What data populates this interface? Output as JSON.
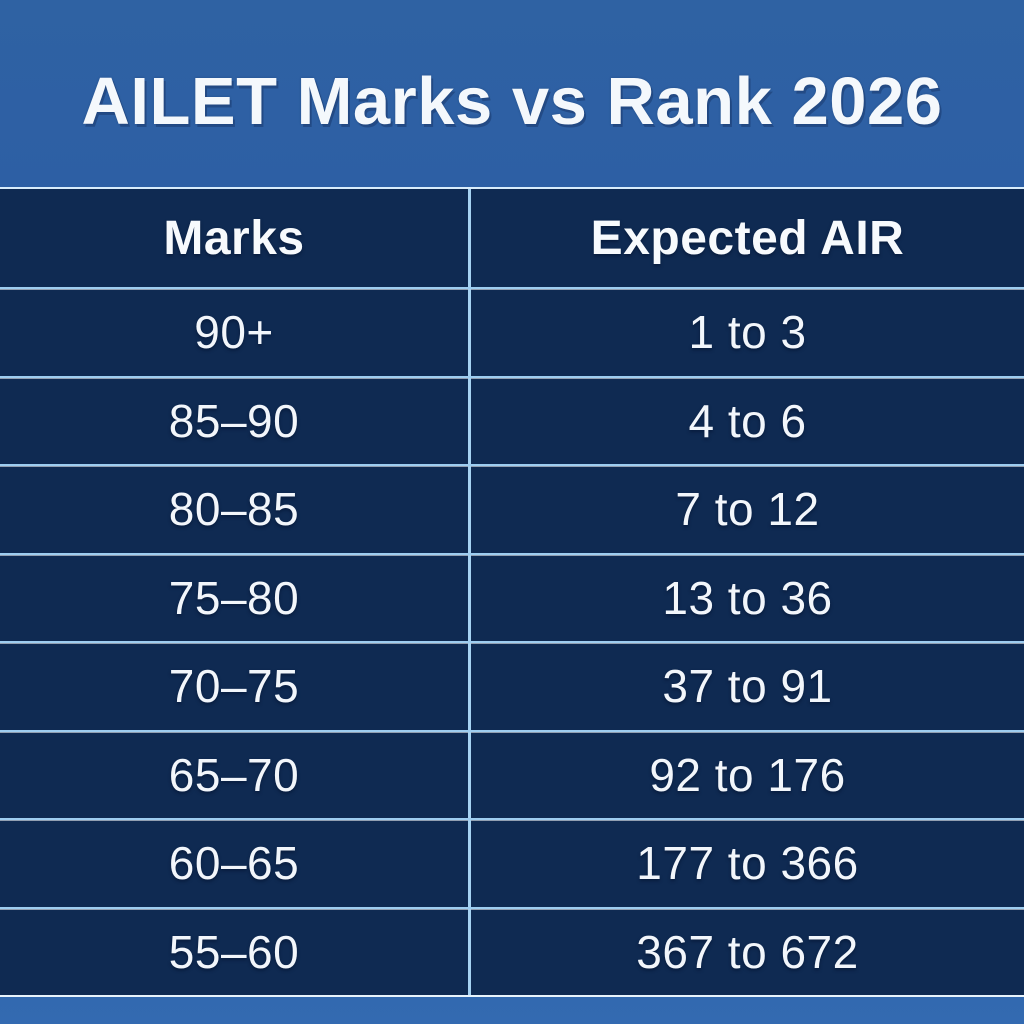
{
  "title": "AILET Marks vs Rank 2026",
  "chart_data": {
    "type": "table",
    "title": "AILET Marks vs Rank 2026",
    "columns": [
      "Marks",
      "Expected AIR"
    ],
    "rows": [
      [
        "90+",
        "1 to 3"
      ],
      [
        "85–90",
        "4 to 6"
      ],
      [
        "80–85",
        "7 to 12"
      ],
      [
        "75–80",
        "13 to 36"
      ],
      [
        "70–75",
        "37 to 91"
      ],
      [
        "65–70",
        "92 to 176"
      ],
      [
        "60–65",
        "177 to 366"
      ],
      [
        "55–60",
        "367 to 672"
      ]
    ]
  },
  "colors": {
    "banner_blue": "#2e61a6",
    "table_navy": "#0f2a52",
    "divider_light_blue": "#a6d2f2",
    "text_white": "#f4f8fc"
  }
}
